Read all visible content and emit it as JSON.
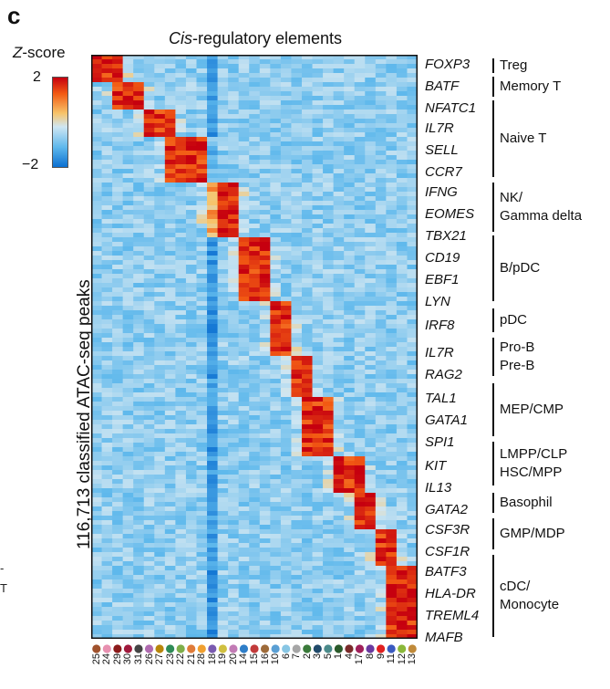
{
  "panel_letter": "c",
  "colorbar": {
    "label_italic": "Z",
    "label_rest": "-score",
    "max": "2",
    "min": "−2"
  },
  "colors": {
    "high": "#c6000f",
    "mid": "#f7c46a",
    "neutral": "#cfe6f2",
    "low": "#0b6fd1"
  },
  "left_edge_marks": [
    "-",
    "T"
  ],
  "chart_data": {
    "type": "heatmap",
    "title_italic": "Cis",
    "title_rest": "-regulatory elements",
    "ylabel": "116,713 classified ATAC-seq peaks",
    "zlim": [
      -2,
      2
    ],
    "columns": [
      "25",
      "24",
      "29",
      "30",
      "31",
      "26",
      "27",
      "23",
      "22",
      "21",
      "28",
      "18",
      "19",
      "20",
      "14",
      "15",
      "16",
      "10",
      "6",
      "7",
      "2",
      "3",
      "5",
      "1",
      "4",
      "17",
      "8",
      "9",
      "11",
      "12",
      "13"
    ],
    "column_colors": [
      "#a0522d",
      "#e890b0",
      "#8b1a1a",
      "#a0193c",
      "#444444",
      "#b06bb0",
      "#b8860b",
      "#2e8b57",
      "#7fae4a",
      "#e07b39",
      "#f0a030",
      "#7a5ab0",
      "#d0c040",
      "#c27bb5",
      "#2e7ec8",
      "#c23a3a",
      "#9e6b3a",
      "#5a9fd4",
      "#88c6e4",
      "#a6a6a6",
      "#3a7a3a",
      "#204a6a",
      "#4a8a8a",
      "#2a5a2a",
      "#7a2a2a",
      "#a0205a",
      "#6a3aa0",
      "#e02020",
      "#3a5ac0",
      "#8ab83a",
      "#c08a3a"
    ],
    "genes": [
      "FOXP3",
      "BATF",
      "NFATC1",
      "IL7R",
      "SELL",
      "CCR7",
      "IFNG",
      "EOMES",
      "TBX21",
      "CD19",
      "EBF1",
      "LYN",
      "IRF8",
      "IL7R",
      "RAG2",
      "TAL1",
      "GATA1",
      "SPI1",
      "KIT",
      "IL13",
      "GATA2",
      "CSF3R",
      "CSF1R",
      "BATF3",
      "HLA-DR",
      "TREML4",
      "MAFB"
    ],
    "groups": [
      "Treg",
      "Memory T",
      "Naive T",
      "NK/\nGamma delta",
      "B/pDC",
      "pDC",
      "Pro-B\nPre-B",
      "MEP/CMP",
      "LMPP/CLP\nHSC/MPP",
      "Basophil",
      "GMP/MDP",
      "cDC/\nMonocyte"
    ]
  }
}
